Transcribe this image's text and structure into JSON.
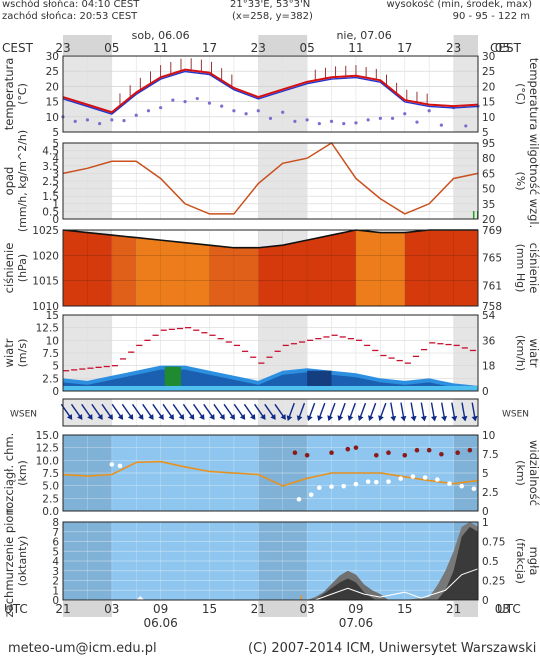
{
  "header": {
    "sunrise": "wschód słońca: 04:10 CEST",
    "sunset": "zachód słońca: 20:53 CEST",
    "coords": "21°33'E, 53°3'N",
    "grid": "(x=258, y=382)",
    "height_label": "wysokość (min, środek, max)",
    "height_values": "90 - 95 - 122 m"
  },
  "top_axis": {
    "zone": "CEST",
    "day1": "sob, 06.06",
    "day2": "nie, 07.06",
    "hours": [
      "23",
      "05",
      "11",
      "17",
      "23",
      "05",
      "11",
      "17",
      "23",
      "05"
    ]
  },
  "bottom_axis": {
    "zone": "UTC",
    "hours": [
      "21",
      "03",
      "09",
      "15",
      "21",
      "03",
      "09",
      "15",
      "21",
      "03"
    ],
    "day1": "06.06",
    "day2": "07.06"
  },
  "footer": {
    "email": "meteo-um@icm.edu.pl",
    "copyright": "(C) 2007-2014 ICM, Uniwersytet Warszawski"
  },
  "panels": {
    "temp": {
      "left_label": "temperatura",
      "left_unit": "(°C)",
      "right_label": "temperatura",
      "right_unit": "(°C)"
    },
    "precip": {
      "left_label": "opad",
      "left_unit": "(mm/h, kg/m^2/h)",
      "right_label": "wilgotność wzgl.",
      "right_unit": "(%)"
    },
    "pressure": {
      "left_label": "ciśnienie",
      "left_unit": "(hPa)",
      "right_label": "ciśnienie",
      "right_unit": "(mm Hg)"
    },
    "wind": {
      "left_label": "wiatr",
      "left_unit": "(m/s)",
      "right_label": "wiatr",
      "right_unit": "(km/h)"
    },
    "winddir": {
      "left_label": "WSEN",
      "right_label": "WSEN"
    },
    "cloudbase": {
      "left_label": "rozciągł. chm.",
      "left_unit": "(km)",
      "right_label": "widzialność",
      "right_unit": "(km)"
    },
    "cloud": {
      "left_label": "zachmurzenie pion.",
      "left_unit": "(oktanty)",
      "right_label": "mgła",
      "right_unit": "(frakcja)"
    }
  },
  "chart_data": [
    {
      "type": "line",
      "panel": "temp",
      "ylim": [
        5,
        30
      ],
      "yticks": [
        5,
        10,
        15,
        20,
        25,
        30
      ],
      "x_hours_utc": [
        0,
        3,
        6,
        9,
        12,
        15,
        18,
        21,
        24,
        27,
        30,
        33,
        36,
        39,
        42,
        45,
        48,
        51
      ],
      "series": [
        {
          "key": "temperature",
          "values": [
            16.5,
            14,
            11.5,
            18,
            23,
            25.5,
            24.5,
            19.5,
            16.5,
            19,
            21.5,
            23,
            23.5,
            22,
            15.5,
            14,
            13.5,
            14
          ]
        },
        {
          "key": "dewpoint",
          "values": [
            10,
            9,
            9,
            10.5,
            13,
            15,
            14.5,
            12,
            12,
            11.5,
            9,
            8.5,
            8,
            9.5,
            11,
            12,
            13,
            13.5
          ]
        },
        {
          "key": "ground_min",
          "values": [
            9,
            8,
            7.5,
            10,
            14,
            17,
            15,
            12,
            10,
            9,
            8,
            7.5,
            8,
            10,
            9,
            7.5,
            7,
            7
          ]
        }
      ],
      "spread_bars_hours": [
        6,
        21,
        30,
        45
      ]
    },
    {
      "type": "line",
      "panel": "precip",
      "ylim_left": [
        0,
        5
      ],
      "yticks_left": [
        0,
        0.5,
        1,
        1.5,
        2,
        2.5,
        3,
        3.5,
        4,
        4.5,
        5
      ],
      "ylim_right": [
        20,
        95
      ],
      "yticks_right": [
        20,
        35,
        50,
        65,
        80,
        95
      ],
      "series": [
        {
          "key": "humidity",
          "values": [
            65,
            70,
            77,
            77,
            60,
            35,
            25,
            25,
            55,
            75,
            80,
            95,
            60,
            40,
            25,
            35,
            60,
            65
          ]
        }
      ],
      "precip_bars_hours": [
        50.5,
        51
      ]
    },
    {
      "type": "area",
      "panel": "pressure",
      "ylim_left": [
        1010,
        1025
      ],
      "yticks_left": [
        1010,
        1015,
        1020,
        1025
      ],
      "ylim_right": [
        758,
        769
      ],
      "yticks_right": [
        758,
        761,
        765,
        769
      ],
      "series": [
        {
          "key": "pressure",
          "values": [
            1025,
            1024.5,
            1024,
            1023.5,
            1023,
            1022.5,
            1022,
            1021.5,
            1021.5,
            1022,
            1023,
            1024,
            1025,
            1024.5,
            1024.5,
            1025,
            1025.5,
            1026
          ]
        }
      ]
    },
    {
      "type": "line",
      "panel": "wind",
      "ylim_left": [
        0,
        15
      ],
      "yticks_left": [
        0,
        2.5,
        5,
        7.5,
        10,
        12.5,
        15
      ],
      "ylim_right": [
        0,
        54
      ],
      "yticks_right": [
        0,
        18,
        36,
        54
      ],
      "series": [
        {
          "key": "gusts",
          "values": [
            4,
            4.5,
            5,
            9,
            12,
            12.5,
            11,
            9,
            5.5,
            9,
            10,
            11,
            10,
            7,
            5.5,
            9.5,
            9,
            7.5
          ]
        },
        {
          "key": "wind",
          "values": [
            2.5,
            2,
            3,
            4,
            5,
            5,
            4,
            3,
            2,
            4,
            4.5,
            4,
            3.5,
            2.5,
            2,
            2.5,
            1.5,
            1
          ]
        }
      ]
    },
    {
      "type": "scatter",
      "panel": "cloudbase",
      "ylim_left": [
        0,
        15
      ],
      "yticks_left": [
        0,
        2.5,
        5,
        7.5,
        10,
        12.5,
        15
      ],
      "ylim_right": [
        0,
        10
      ],
      "yticks_right": [
        0,
        2.5,
        5,
        7.5,
        10
      ],
      "series": [
        {
          "key": "visibility",
          "values": [
            4.8,
            4.6,
            4.8,
            6.4,
            6.5,
            5.8,
            5.2,
            5,
            4.8,
            3.3,
            4.3,
            5,
            5,
            5,
            4.5,
            4,
            3.6,
            4
          ]
        }
      ]
    },
    {
      "type": "area",
      "panel": "cloud",
      "ylim_left": [
        0,
        8
      ],
      "yticks_left": [
        0,
        1,
        2,
        3,
        4,
        5,
        6,
        7,
        8
      ],
      "ylim_right": [
        0,
        1
      ],
      "yticks_right": [
        0,
        0.25,
        0.5,
        0.75,
        1
      ]
    }
  ]
}
